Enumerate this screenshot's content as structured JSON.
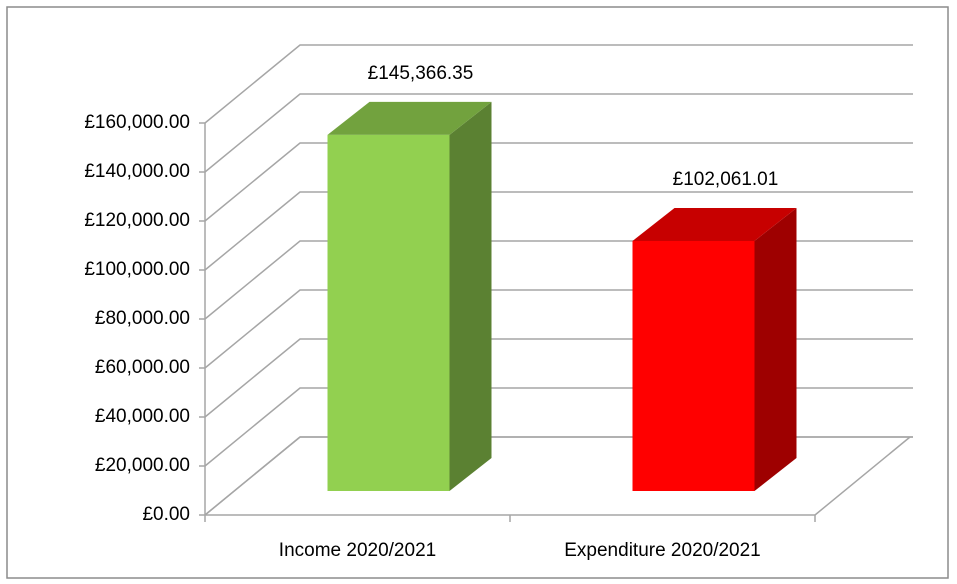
{
  "chart_data": {
    "type": "bar3d",
    "categories": [
      "Income 2020/2021",
      "Expenditure 2020/2021"
    ],
    "values": [
      145366.35,
      102061.01
    ],
    "value_labels": [
      "£145,366.35",
      "£102,061.01"
    ],
    "colors": [
      "#92d050",
      "#ff0000"
    ],
    "ylim": [
      0,
      160000
    ],
    "yticks": [
      {
        "value": 0,
        "label": "£0.00"
      },
      {
        "value": 20000,
        "label": "£20,000.00"
      },
      {
        "value": 40000,
        "label": "£40,000.00"
      },
      {
        "value": 60000,
        "label": "£60,000.00"
      },
      {
        "value": 80000,
        "label": "£80,000.00"
      },
      {
        "value": 100000,
        "label": "£100,000.00"
      },
      {
        "value": 120000,
        "label": "£120,000.00"
      },
      {
        "value": 140000,
        "label": "£140,000.00"
      },
      {
        "value": 160000,
        "label": "£160,000.00"
      }
    ],
    "grid": true
  }
}
